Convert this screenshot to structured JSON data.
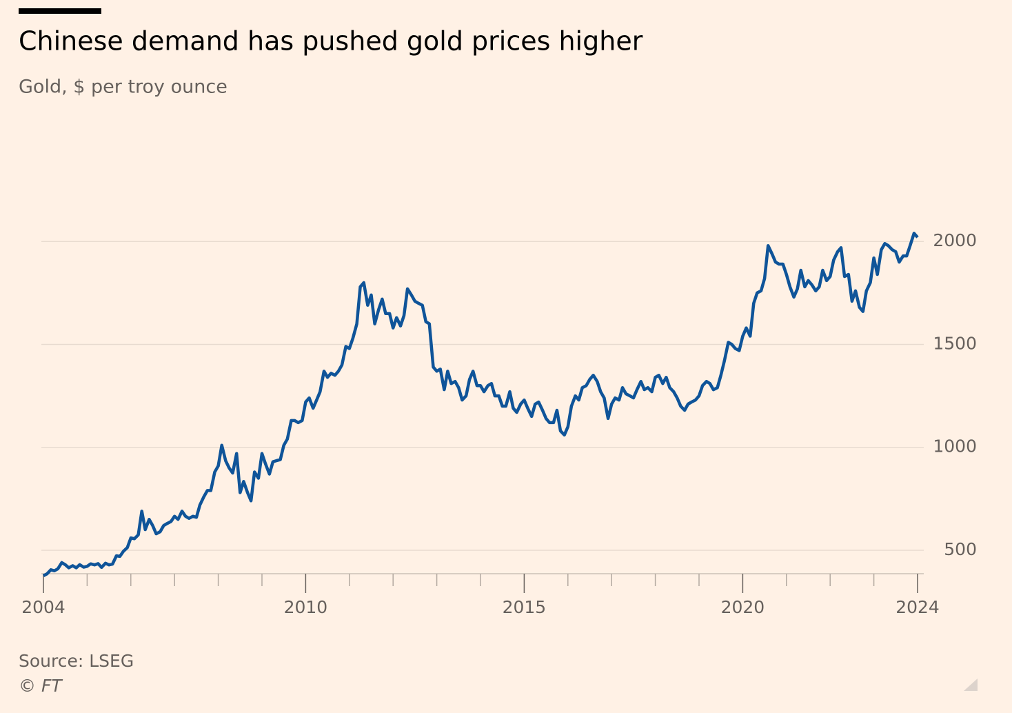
{
  "chart_data": {
    "type": "line",
    "title": "Chinese demand has pushed gold prices higher",
    "subtitle": "Gold, $ per troy ounce",
    "source": "Source: LSEG",
    "credit": "© FT",
    "x": [
      2004,
      2004.08,
      2004.17,
      2004.25,
      2004.33,
      2004.42,
      2004.5,
      2004.58,
      2004.67,
      2004.75,
      2004.83,
      2004.92,
      2005,
      2005.08,
      2005.17,
      2005.25,
      2005.33,
      2005.42,
      2005.5,
      2005.58,
      2005.67,
      2005.75,
      2005.83,
      2005.92,
      2006,
      2006.08,
      2006.17,
      2006.25,
      2006.33,
      2006.42,
      2006.5,
      2006.58,
      2006.67,
      2006.75,
      2006.83,
      2006.92,
      2007,
      2007.08,
      2007.17,
      2007.25,
      2007.33,
      2007.42,
      2007.5,
      2007.58,
      2007.67,
      2007.75,
      2007.83,
      2007.92,
      2008,
      2008.08,
      2008.17,
      2008.25,
      2008.33,
      2008.42,
      2008.5,
      2008.58,
      2008.67,
      2008.75,
      2008.83,
      2008.92,
      2009,
      2009.08,
      2009.17,
      2009.25,
      2009.33,
      2009.42,
      2009.5,
      2009.58,
      2009.67,
      2009.75,
      2009.83,
      2009.92,
      2010,
      2010.08,
      2010.17,
      2010.25,
      2010.33,
      2010.42,
      2010.5,
      2010.58,
      2010.67,
      2010.75,
      2010.83,
      2010.92,
      2011,
      2011.08,
      2011.17,
      2011.25,
      2011.33,
      2011.42,
      2011.5,
      2011.58,
      2011.67,
      2011.75,
      2011.83,
      2011.92,
      2012,
      2012.08,
      2012.17,
      2012.25,
      2012.33,
      2012.42,
      2012.5,
      2012.58,
      2012.67,
      2012.75,
      2012.83,
      2012.92,
      2013,
      2013.08,
      2013.17,
      2013.25,
      2013.33,
      2013.42,
      2013.5,
      2013.58,
      2013.67,
      2013.75,
      2013.83,
      2013.92,
      2014,
      2014.08,
      2014.17,
      2014.25,
      2014.33,
      2014.42,
      2014.5,
      2014.58,
      2014.67,
      2014.75,
      2014.83,
      2014.92,
      2015,
      2015.08,
      2015.17,
      2015.25,
      2015.33,
      2015.42,
      2015.5,
      2015.58,
      2015.67,
      2015.75,
      2015.83,
      2015.92,
      2016,
      2016.08,
      2016.17,
      2016.25,
      2016.33,
      2016.42,
      2016.5,
      2016.58,
      2016.67,
      2016.75,
      2016.83,
      2016.92,
      2017,
      2017.08,
      2017.17,
      2017.25,
      2017.33,
      2017.42,
      2017.5,
      2017.58,
      2017.67,
      2017.75,
      2017.83,
      2017.92,
      2018,
      2018.08,
      2018.17,
      2018.25,
      2018.33,
      2018.42,
      2018.5,
      2018.58,
      2018.67,
      2018.75,
      2018.83,
      2018.92,
      2019,
      2019.08,
      2019.17,
      2019.25,
      2019.33,
      2019.42,
      2019.5,
      2019.58,
      2019.67,
      2019.75,
      2019.83,
      2019.92,
      2020,
      2020.08,
      2020.17,
      2020.25,
      2020.33,
      2020.42,
      2020.5,
      2020.58,
      2020.67,
      2020.75,
      2020.83,
      2020.92,
      2021,
      2021.08,
      2021.17,
      2021.25,
      2021.33,
      2021.42,
      2021.5,
      2021.58,
      2021.67,
      2021.75,
      2021.83,
      2021.92,
      2022,
      2022.08,
      2022.17,
      2022.25,
      2022.33,
      2022.42,
      2022.5,
      2022.58,
      2022.67,
      2022.75,
      2022.83,
      2022.92,
      2023,
      2023.08,
      2023.17,
      2023.25,
      2023.33,
      2023.42,
      2023.5,
      2023.58,
      2023.67,
      2023.75,
      2023.83,
      2023.92,
      2024
    ],
    "series": [
      {
        "name": "Gold",
        "color": "#0f5499",
        "values": [
          376,
          385,
          405,
          400,
          410,
          440,
          430,
          415,
          425,
          415,
          430,
          418,
          422,
          434,
          429,
          435,
          417,
          437,
          429,
          433,
          473,
          470,
          495,
          513,
          560,
          556,
          575,
          690,
          600,
          650,
          620,
          580,
          590,
          620,
          630,
          640,
          665,
          650,
          690,
          665,
          655,
          665,
          660,
          720,
          760,
          790,
          790,
          880,
          910,
          1010,
          934,
          900,
          875,
          970,
          780,
          834,
          780,
          740,
          880,
          850,
          970,
          920,
          870,
          930,
          935,
          940,
          1010,
          1040,
          1130,
          1130,
          1120,
          1130,
          1220,
          1240,
          1190,
          1230,
          1270,
          1370,
          1340,
          1360,
          1350,
          1370,
          1400,
          1490,
          1480,
          1530,
          1600,
          1780,
          1800,
          1690,
          1740,
          1600,
          1670,
          1720,
          1650,
          1650,
          1580,
          1630,
          1590,
          1640,
          1770,
          1740,
          1710,
          1700,
          1690,
          1610,
          1600,
          1390,
          1370,
          1380,
          1280,
          1370,
          1310,
          1320,
          1290,
          1230,
          1250,
          1330,
          1370,
          1300,
          1300,
          1270,
          1300,
          1310,
          1250,
          1250,
          1200,
          1200,
          1270,
          1190,
          1170,
          1210,
          1230,
          1190,
          1150,
          1210,
          1220,
          1180,
          1140,
          1120,
          1120,
          1180,
          1080,
          1060,
          1100,
          1200,
          1250,
          1230,
          1290,
          1300,
          1330,
          1350,
          1320,
          1270,
          1240,
          1140,
          1210,
          1240,
          1230,
          1290,
          1260,
          1250,
          1240,
          1280,
          1320,
          1280,
          1290,
          1270,
          1340,
          1350,
          1310,
          1340,
          1290,
          1270,
          1240,
          1200,
          1180,
          1210,
          1220,
          1230,
          1250,
          1300,
          1320,
          1310,
          1280,
          1290,
          1350,
          1420,
          1510,
          1500,
          1480,
          1470,
          1540,
          1580,
          1540,
          1700,
          1750,
          1760,
          1820,
          1980,
          1940,
          1900,
          1890,
          1890,
          1840,
          1780,
          1730,
          1770,
          1860,
          1780,
          1810,
          1790,
          1760,
          1780,
          1860,
          1810,
          1830,
          1910,
          1950,
          1970,
          1830,
          1840,
          1710,
          1760,
          1680,
          1660,
          1760,
          1800,
          1920,
          1840,
          1960,
          1990,
          1980,
          1960,
          1950,
          1900,
          1930,
          1930,
          1980,
          2040,
          2020
        ]
      }
    ],
    "xlim": [
      2004,
      2024.1
    ],
    "xticks": [
      2004,
      2010,
      2015,
      2020,
      2024
    ],
    "xminorticks": [
      2005,
      2006,
      2007,
      2008,
      2009,
      2011,
      2012,
      2013,
      2014,
      2016,
      2017,
      2018,
      2019,
      2021,
      2022,
      2023
    ],
    "ylim": [
      376,
      2540
    ],
    "yticks": [
      500,
      1000,
      1500,
      2000
    ],
    "grid": true
  }
}
